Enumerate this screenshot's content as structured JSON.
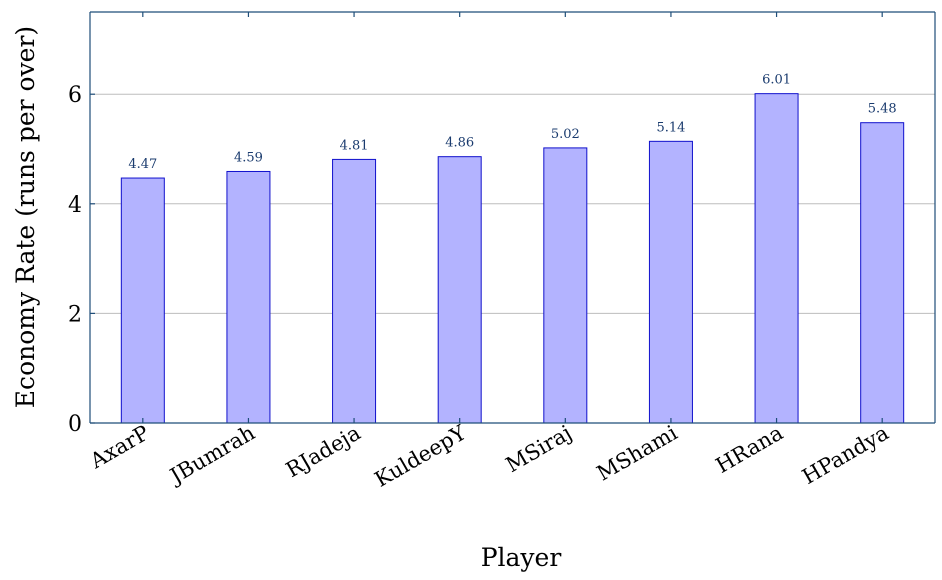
{
  "chart_data": {
    "type": "bar",
    "title": "",
    "xlabel": "Player",
    "ylabel": "Economy Rate (runs per over)",
    "categories": [
      "AxarP",
      "JBumrah",
      "RJadeja",
      "KuldeepY",
      "MSiraj",
      "MShami",
      "HRana",
      "HPandya"
    ],
    "values": [
      4.47,
      4.59,
      4.81,
      4.86,
      5.02,
      5.14,
      6.01,
      5.48
    ],
    "data_labels": [
      "4.47",
      "4.59",
      "4.81",
      "4.86",
      "5.02",
      "5.14",
      "6.01",
      "5.48"
    ],
    "ylim": [
      0,
      7.5
    ],
    "yticks": [
      0,
      2,
      4,
      6
    ],
    "ytick_labels": [
      "0",
      "2",
      "4",
      "6"
    ],
    "grid": "horizontal",
    "colors": {
      "bar_fill": "#b3b3ff",
      "bar_stroke": "#1010cc",
      "axis": "#1f4e79",
      "grid": "#bdbdbd",
      "data_label": "#1a3b6e"
    }
  }
}
